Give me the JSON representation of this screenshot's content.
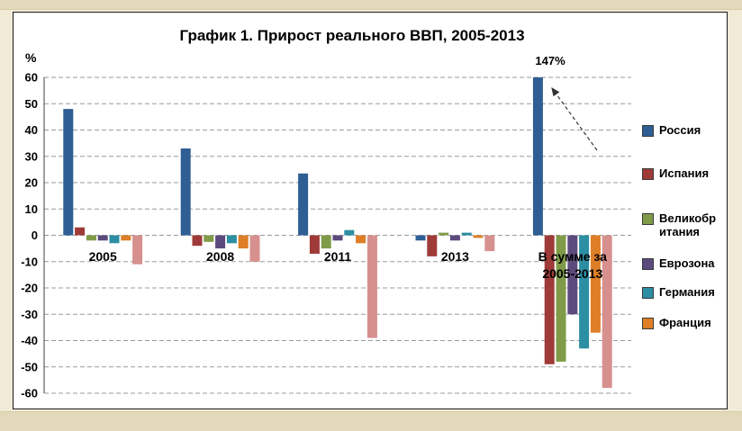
{
  "chart_data": {
    "type": "bar",
    "title": "График 1. Прирост реального ВВП, 2005-2013",
    "xlabel": "",
    "ylabel": "%",
    "ylim": [
      -60,
      60
    ],
    "yticks": [
      60,
      50,
      40,
      30,
      20,
      10,
      0,
      -10,
      -20,
      -30,
      -40,
      -50,
      -60
    ],
    "grid": "dashed-horizontal",
    "legend_position": "right",
    "bar_clip_max": 60,
    "categories": [
      "2005",
      "2008",
      "2011",
      "2013",
      "В сумме за\n2005-2013"
    ],
    "series": [
      {
        "name": "Россия",
        "legend_label": "Россия",
        "color": "#2E5E94",
        "values": [
          48,
          33,
          23.5,
          -2,
          147
        ]
      },
      {
        "name": "Испания",
        "legend_label": "Испания",
        "color": "#9E3B38",
        "values": [
          3,
          -4,
          -7,
          -8,
          -49
        ]
      },
      {
        "name": "Великобритания",
        "legend_label": "Великобр\nитания",
        "color": "#7F9B48",
        "values": [
          -2,
          -2.5,
          -5,
          1,
          -48
        ]
      },
      {
        "name": "Еврозона",
        "legend_label": "Еврозона",
        "color": "#5C4A7D",
        "values": [
          -2,
          -5,
          -2,
          -2,
          -30
        ]
      },
      {
        "name": "Германия",
        "legend_label": "Германия",
        "color": "#2C8EA2",
        "values": [
          -3,
          -3,
          2,
          1,
          -43
        ]
      },
      {
        "name": "Франция",
        "legend_label": "Франция",
        "color": "#DE7E26",
        "values": [
          -2,
          -5,
          -3,
          -1,
          -37
        ]
      },
      {
        "name": "",
        "legend_label": null,
        "color": "#D6908E",
        "values": [
          -11,
          -10,
          -39,
          -6,
          -58
        ]
      }
    ],
    "annotation": {
      "text": "147%",
      "target_series": "Россия",
      "target_category": "В сумме за 2005-2013"
    }
  }
}
